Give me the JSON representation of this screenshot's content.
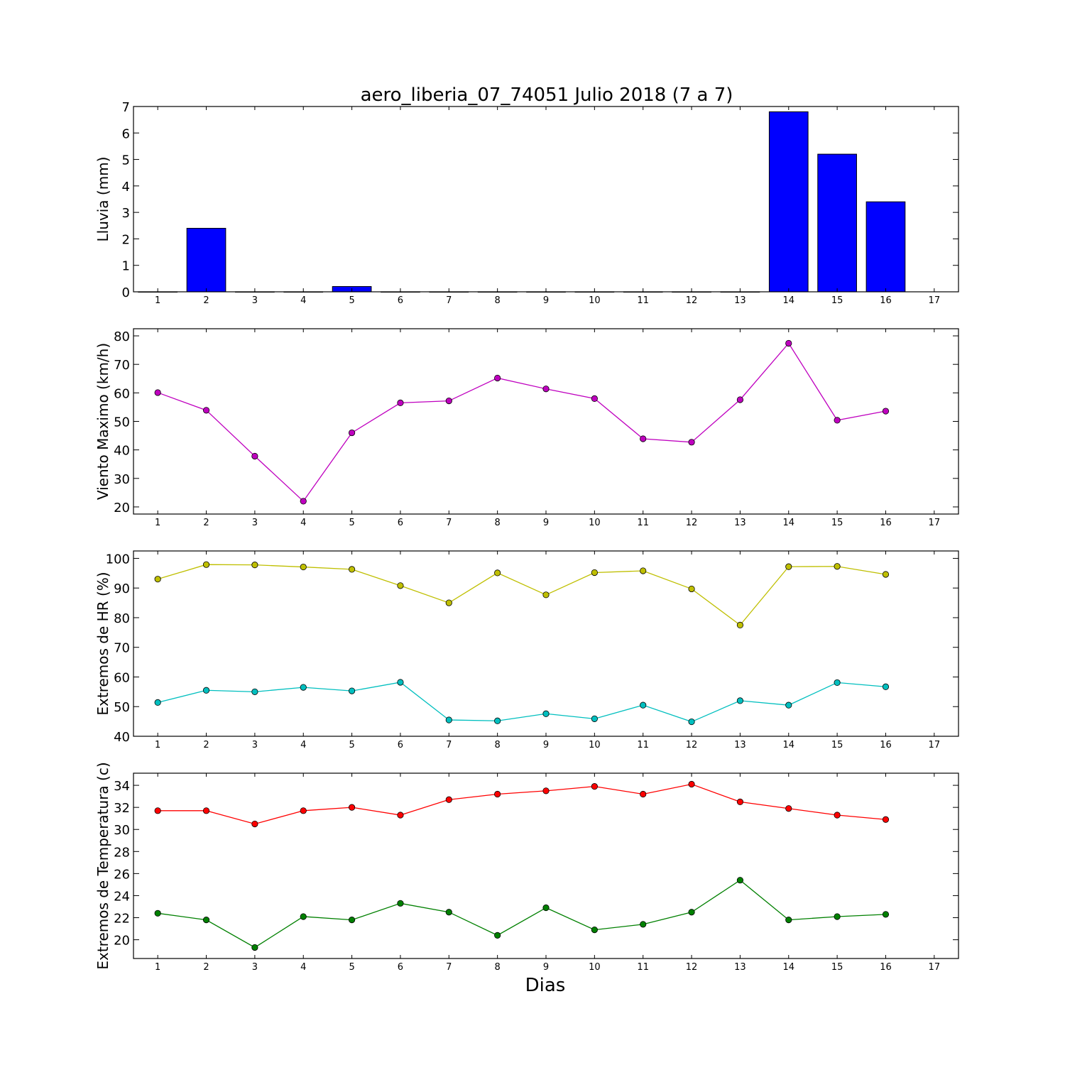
{
  "figure": {
    "title": "aero_liberia_07_74051 Julio 2018  (7 a 7)",
    "xlabel": "Dias"
  },
  "chart_data": [
    {
      "type": "bar",
      "ylabel": "Lluvia (mm)",
      "x_ticks": [
        1,
        2,
        3,
        4,
        5,
        6,
        7,
        8,
        9,
        10,
        11,
        12,
        13,
        14,
        15,
        16,
        17
      ],
      "xlim": [
        0.5,
        17.5
      ],
      "ylim": [
        0,
        7
      ],
      "y_ticks": [
        0,
        1,
        2,
        3,
        4,
        5,
        6,
        7
      ],
      "grid": false,
      "series": [
        {
          "color": "#0000ff",
          "x": [
            1,
            2,
            3,
            4,
            5,
            6,
            7,
            8,
            9,
            10,
            11,
            12,
            13,
            14,
            15,
            16
          ],
          "values": [
            0,
            2.4,
            0,
            0,
            0.2,
            0,
            0,
            0,
            0,
            0,
            0,
            0,
            0,
            6.8,
            5.2,
            3.4
          ]
        }
      ]
    },
    {
      "type": "line",
      "ylabel": "Viento Maximo (km/h)",
      "x_ticks": [
        1,
        2,
        3,
        4,
        5,
        6,
        7,
        8,
        9,
        10,
        11,
        12,
        13,
        14,
        15,
        16,
        17
      ],
      "xlim": [
        0.5,
        17.5
      ],
      "ylim": [
        17.5,
        82.5
      ],
      "y_ticks": [
        20,
        30,
        40,
        50,
        60,
        70,
        80
      ],
      "grid": false,
      "series": [
        {
          "color": "#bf00bf",
          "x": [
            1,
            2,
            3,
            4,
            5,
            6,
            7,
            8,
            9,
            10,
            11,
            12,
            13,
            14,
            15,
            16
          ],
          "values": [
            60.1,
            53.9,
            37.8,
            22.0,
            46.0,
            56.5,
            57.2,
            65.2,
            61.4,
            58.0,
            43.9,
            42.7,
            57.6,
            77.4,
            50.4,
            53.6
          ]
        }
      ]
    },
    {
      "type": "line",
      "ylabel": "Extremos de HR (%)",
      "x_ticks": [
        1,
        2,
        3,
        4,
        5,
        6,
        7,
        8,
        9,
        10,
        11,
        12,
        13,
        14,
        15,
        16,
        17
      ],
      "xlim": [
        0.5,
        17.5
      ],
      "ylim": [
        40,
        102.5
      ],
      "y_ticks": [
        40,
        50,
        60,
        70,
        80,
        90,
        100
      ],
      "grid": false,
      "series": [
        {
          "color": "#bfbf00",
          "x": [
            1,
            2,
            3,
            4,
            5,
            6,
            7,
            8,
            9,
            10,
            11,
            12,
            13,
            14,
            15,
            16
          ],
          "values": [
            93.0,
            97.9,
            97.8,
            97.1,
            96.3,
            90.8,
            85.0,
            95.1,
            87.7,
            95.2,
            95.8,
            89.7,
            77.5,
            97.2,
            97.3,
            94.6
          ]
        },
        {
          "color": "#00bfbf",
          "x": [
            1,
            2,
            3,
            4,
            5,
            6,
            7,
            8,
            9,
            10,
            11,
            12,
            13,
            14,
            15,
            16
          ],
          "values": [
            51.4,
            55.5,
            55.0,
            56.5,
            55.3,
            58.2,
            45.5,
            45.2,
            47.6,
            45.9,
            50.5,
            44.9,
            52.0,
            50.5,
            58.1,
            56.7
          ]
        }
      ]
    },
    {
      "type": "line",
      "ylabel": "Extremos de Temperatura (c)",
      "x_ticks": [
        1,
        2,
        3,
        4,
        5,
        6,
        7,
        8,
        9,
        10,
        11,
        12,
        13,
        14,
        15,
        16,
        17
      ],
      "xlim": [
        0.5,
        17.5
      ],
      "ylim": [
        18.3,
        35.1
      ],
      "y_ticks": [
        20,
        22,
        24,
        26,
        28,
        30,
        32,
        34
      ],
      "grid": false,
      "series": [
        {
          "color": "#ff0000",
          "x": [
            1,
            2,
            3,
            4,
            5,
            6,
            7,
            8,
            9,
            10,
            11,
            12,
            13,
            14,
            15,
            16
          ],
          "values": [
            31.7,
            31.7,
            30.5,
            31.7,
            32.0,
            31.3,
            32.7,
            33.2,
            33.5,
            33.9,
            33.2,
            34.1,
            32.5,
            31.9,
            31.3,
            30.9
          ]
        },
        {
          "color": "#008000",
          "x": [
            1,
            2,
            3,
            4,
            5,
            6,
            7,
            8,
            9,
            10,
            11,
            12,
            13,
            14,
            15,
            16
          ],
          "values": [
            22.4,
            21.8,
            19.3,
            22.1,
            21.8,
            23.3,
            22.5,
            20.4,
            22.9,
            20.9,
            21.4,
            22.5,
            25.4,
            21.8,
            22.1,
            22.3
          ]
        }
      ]
    }
  ]
}
